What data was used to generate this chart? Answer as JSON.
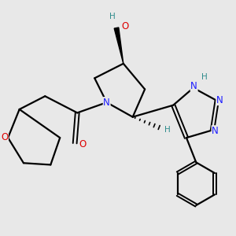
{
  "background_color": "#e8e8e8",
  "atom_colors": {
    "C": "#000000",
    "N": "#1a1aff",
    "O": "#dd0000",
    "H": "#2e8b8b"
  },
  "bond_color": "#000000",
  "bond_width": 1.6,
  "font_size_atom": 8.5,
  "font_size_H": 7.5
}
